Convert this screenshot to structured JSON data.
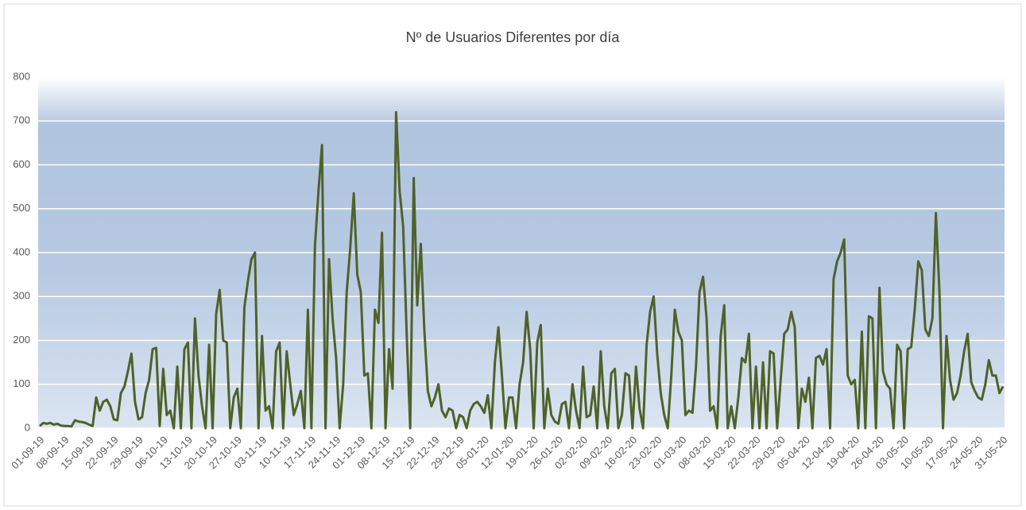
{
  "chart_data": {
    "type": "line",
    "title": "Nº de Usuarios Diferentes por día",
    "categories": [
      "01-09-19",
      null,
      null,
      null,
      null,
      null,
      null,
      "08-09-19",
      null,
      null,
      null,
      null,
      null,
      null,
      "15-09-19",
      null,
      null,
      null,
      null,
      null,
      null,
      "22-09-19",
      null,
      null,
      null,
      null,
      null,
      null,
      "29-09-19",
      null,
      null,
      null,
      null,
      null,
      null,
      "06-10-19",
      null,
      null,
      null,
      null,
      null,
      null,
      "13-10-19",
      null,
      null,
      null,
      null,
      null,
      null,
      "20-10-19",
      null,
      null,
      null,
      null,
      null,
      null,
      "27-10-19",
      null,
      null,
      null,
      null,
      null,
      null,
      "03-11-19",
      null,
      null,
      null,
      null,
      null,
      null,
      "10-11-19",
      null,
      null,
      null,
      null,
      null,
      null,
      "17-11-19",
      null,
      null,
      null,
      null,
      null,
      null,
      "24-11-19",
      null,
      null,
      null,
      null,
      null,
      null,
      "01-12-19",
      null,
      null,
      null,
      null,
      null,
      null,
      "08-12-19",
      null,
      null,
      null,
      null,
      null,
      null,
      "15-12-19",
      null,
      null,
      null,
      null,
      null,
      null,
      "22-12-19",
      null,
      null,
      null,
      null,
      null,
      null,
      "29-12-19",
      null,
      null,
      null,
      null,
      null,
      null,
      "05-01-20",
      null,
      null,
      null,
      null,
      null,
      null,
      "12-01-20",
      null,
      null,
      null,
      null,
      null,
      null,
      "19-01-20",
      null,
      null,
      null,
      null,
      null,
      null,
      "26-01-20",
      null,
      null,
      null,
      null,
      null,
      null,
      "02-02-20",
      null,
      null,
      null,
      null,
      null,
      null,
      "09-02-20",
      null,
      null,
      null,
      null,
      null,
      null,
      "16-02-20",
      null,
      null,
      null,
      null,
      null,
      null,
      "23-02-20",
      null,
      null,
      null,
      null,
      null,
      null,
      "01-03-20",
      null,
      null,
      null,
      null,
      null,
      null,
      "08-03-20",
      null,
      null,
      null,
      null,
      null,
      null,
      "15-03-20",
      null,
      null,
      null,
      null,
      null,
      null,
      "22-03-20",
      null,
      null,
      null,
      null,
      null,
      null,
      "29-03-20",
      null,
      null,
      null,
      null,
      null,
      null,
      "05-04-20",
      null,
      null,
      null,
      null,
      null,
      null,
      "12-04-20",
      null,
      null,
      null,
      null,
      null,
      null,
      "19-04-20",
      null,
      null,
      null,
      null,
      null,
      null,
      "26-04-20",
      null,
      null,
      null,
      null,
      null,
      null,
      "03-05-20",
      null,
      null,
      null,
      null,
      null,
      null,
      "10-05-20",
      null,
      null,
      null,
      null,
      null,
      null,
      "17-05-20",
      null,
      null,
      null,
      null,
      null,
      null,
      "24-05-20",
      null,
      null,
      null,
      null,
      null,
      null,
      "31-05-20"
    ],
    "values": [
      5,
      12,
      10,
      12,
      8,
      10,
      6,
      5,
      5,
      4,
      18,
      15,
      14,
      12,
      8,
      5,
      70,
      40,
      60,
      65,
      50,
      20,
      18,
      80,
      95,
      130,
      170,
      60,
      20,
      25,
      80,
      110,
      180,
      183,
      5,
      135,
      30,
      40,
      0,
      140,
      0,
      180,
      195,
      0,
      250,
      120,
      50,
      0,
      190,
      0,
      260,
      315,
      200,
      195,
      0,
      70,
      90,
      0,
      275,
      335,
      385,
      400,
      0,
      210,
      40,
      50,
      0,
      175,
      195,
      0,
      175,
      100,
      30,
      55,
      85,
      0,
      270,
      0,
      415,
      540,
      645,
      0,
      385,
      250,
      160,
      0,
      100,
      310,
      410,
      535,
      350,
      310,
      120,
      125,
      0,
      270,
      240,
      445,
      0,
      180,
      90,
      720,
      540,
      460,
      215,
      0,
      570,
      280,
      420,
      225,
      85,
      50,
      70,
      100,
      40,
      25,
      45,
      40,
      0,
      30,
      25,
      0,
      40,
      55,
      60,
      50,
      35,
      75,
      0,
      150,
      230,
      120,
      0,
      70,
      70,
      0,
      100,
      150,
      265,
      180,
      0,
      195,
      235,
      0,
      90,
      30,
      15,
      10,
      55,
      60,
      0,
      100,
      40,
      0,
      140,
      25,
      30,
      95,
      0,
      175,
      50,
      0,
      125,
      135,
      0,
      30,
      125,
      120,
      0,
      140,
      45,
      0,
      190,
      265,
      300,
      170,
      80,
      30,
      0,
      120,
      270,
      220,
      200,
      30,
      40,
      35,
      140,
      310,
      345,
      250,
      40,
      50,
      0,
      210,
      280,
      0,
      50,
      0,
      70,
      160,
      150,
      215,
      0,
      140,
      0,
      150,
      0,
      175,
      170,
      0,
      110,
      215,
      225,
      265,
      230,
      0,
      90,
      60,
      115,
      0,
      160,
      165,
      145,
      180,
      0,
      340,
      380,
      400,
      430,
      120,
      100,
      110,
      0,
      220,
      0,
      255,
      250,
      0,
      320,
      130,
      100,
      90,
      0,
      190,
      175,
      0,
      180,
      185,
      270,
      380,
      360,
      225,
      210,
      250,
      490,
      310,
      0,
      210,
      110,
      65,
      80,
      120,
      175,
      215,
      105,
      85,
      70,
      65,
      100,
      155,
      120,
      120,
      80,
      95
    ],
    "color": "#4f6228",
    "ylim": [
      0,
      800
    ],
    "yticks": [
      0,
      100,
      200,
      300,
      400,
      500,
      600,
      700,
      800
    ],
    "grid": true
  }
}
